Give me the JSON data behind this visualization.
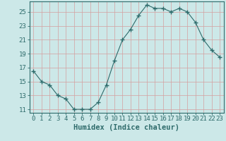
{
  "x": [
    0,
    1,
    2,
    3,
    4,
    5,
    6,
    7,
    8,
    9,
    10,
    11,
    12,
    13,
    14,
    15,
    16,
    17,
    18,
    19,
    20,
    21,
    22,
    23
  ],
  "y": [
    16.5,
    15.0,
    14.5,
    13.0,
    12.5,
    11.0,
    11.0,
    11.0,
    12.0,
    14.5,
    18.0,
    21.0,
    22.5,
    24.5,
    26.0,
    25.5,
    25.5,
    25.0,
    25.5,
    25.0,
    23.5,
    21.0,
    19.5,
    18.5
  ],
  "line_color": "#2e6b6b",
  "marker": "+",
  "marker_size": 4,
  "bg_color": "#cce8e8",
  "grid_color": "#b8d8d0",
  "tick_color": "#2e6b6b",
  "label_color": "#2e6b6b",
  "xlabel": "Humidex (Indice chaleur)",
  "ylim": [
    10.5,
    26.5
  ],
  "yticks": [
    11,
    13,
    15,
    17,
    19,
    21,
    23,
    25
  ],
  "xticks": [
    0,
    1,
    2,
    3,
    4,
    5,
    6,
    7,
    8,
    9,
    10,
    11,
    12,
    13,
    14,
    15,
    16,
    17,
    18,
    19,
    20,
    21,
    22,
    23
  ],
  "tick_fontsize": 6.5,
  "xlabel_fontsize": 7.5
}
